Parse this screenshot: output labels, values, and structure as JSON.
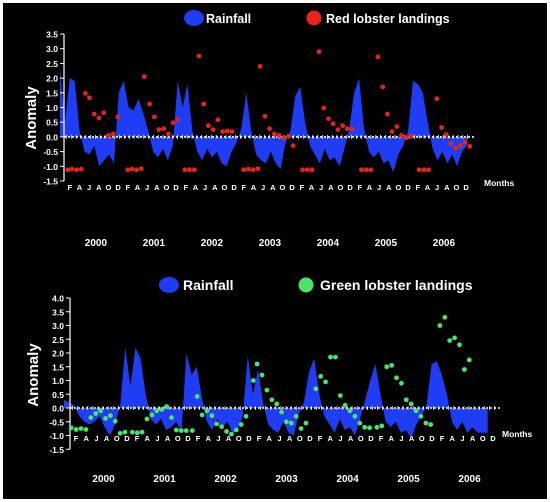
{
  "colors": {
    "background": "#000000",
    "frame": "#ffffff",
    "rainfall": "#1f3df5",
    "red_lobster": "#e8231b",
    "green_lobster": "#4be36a",
    "text": "#ffffff"
  },
  "chart_data": [
    {
      "type": "area",
      "ylabel": "Anomaly",
      "xlabel": "Months",
      "ylim": [
        -1.5,
        3.5
      ],
      "yticks": [
        "3.5",
        "3.0",
        "2.5",
        "2.0",
        "1.5",
        "1.0",
        "0.5",
        "0.0",
        "-0.5",
        "-1.0",
        "-1.5"
      ],
      "years": [
        "2000",
        "2001",
        "2002",
        "2003",
        "2004",
        "2005",
        "2006"
      ],
      "month_tick_labels": [
        "F",
        "A",
        "J",
        "A",
        "O",
        "D"
      ],
      "legend": [
        {
          "name": "Rainfall",
          "marker": "ellipse"
        },
        {
          "name": "Red lobster landings",
          "marker": "dot"
        }
      ],
      "series": [
        {
          "name": "Rainfall",
          "kind": "area",
          "x_start": 2000.0,
          "x_step": 0.0833,
          "values": [
            2.3,
            0.5,
            2.0,
            1.9,
            0.2,
            -0.5,
            -0.6,
            -0.3,
            -1.0,
            -0.8,
            -0.6,
            -0.9,
            1.5,
            1.9,
            1.0,
            0.9,
            1.3,
            0.8,
            0.2,
            -0.5,
            -0.7,
            -0.4,
            -0.8,
            -0.3,
            1.9,
            1.0,
            1.8,
            0.2,
            -0.5,
            -0.8,
            -0.4,
            -0.7,
            -0.5,
            -0.9,
            -1.0,
            -0.5,
            -0.2,
            0.3,
            1.5,
            0.2,
            -0.6,
            -0.8,
            -0.9,
            -0.5,
            -0.9,
            -1.1,
            -0.2,
            0.2,
            1.4,
            1.7,
            0.5,
            -0.3,
            -0.6,
            -0.9,
            -0.4,
            -0.8,
            -0.7,
            -1.0,
            -0.4,
            0.3,
            1.5,
            2.0,
            0.3,
            -0.5,
            -0.7,
            -0.5,
            -0.9,
            -0.8,
            -1.2,
            -0.6,
            -0.3,
            0.2,
            1.9,
            1.8,
            1.5,
            0.5,
            -0.4,
            -0.8,
            -0.5,
            -0.9,
            -0.6,
            -1.0,
            -0.5,
            -0.3
          ]
        },
        {
          "name": "Red lobster landings",
          "kind": "scatter",
          "points": [
            [
              2000.03,
              -1.12
            ],
            [
              2000.1,
              -1.1
            ],
            [
              2000.18,
              -1.12
            ],
            [
              2000.26,
              -1.1
            ],
            [
              2000.33,
              1.48
            ],
            [
              2000.4,
              1.33
            ],
            [
              2000.48,
              0.78
            ],
            [
              2000.56,
              0.64
            ],
            [
              2000.64,
              0.82
            ],
            [
              2000.72,
              0.05
            ],
            [
              2000.8,
              0.1
            ],
            [
              2000.88,
              0.68
            ],
            [
              2001.05,
              -1.12
            ],
            [
              2001.12,
              -1.1
            ],
            [
              2001.2,
              -1.12
            ],
            [
              2001.28,
              -1.08
            ],
            [
              2001.33,
              2.05
            ],
            [
              2001.42,
              1.12
            ],
            [
              2001.5,
              0.68
            ],
            [
              2001.58,
              0.25
            ],
            [
              2001.66,
              0.28
            ],
            [
              2001.74,
              0.1
            ],
            [
              2001.82,
              0.48
            ],
            [
              2001.9,
              0.58
            ],
            [
              2002.02,
              -1.12
            ],
            [
              2002.1,
              -1.12
            ],
            [
              2002.18,
              -1.12
            ],
            [
              2002.26,
              2.75
            ],
            [
              2002.34,
              1.12
            ],
            [
              2002.42,
              0.38
            ],
            [
              2002.5,
              0.25
            ],
            [
              2002.58,
              0.58
            ],
            [
              2002.66,
              0.18
            ],
            [
              2002.74,
              0.2
            ],
            [
              2002.82,
              0.18
            ],
            [
              2003.02,
              -1.12
            ],
            [
              2003.1,
              -1.1
            ],
            [
              2003.18,
              -1.12
            ],
            [
              2003.26,
              -1.08
            ],
            [
              2003.3,
              2.4
            ],
            [
              2003.38,
              0.7
            ],
            [
              2003.46,
              0.28
            ],
            [
              2003.54,
              0.1
            ],
            [
              2003.62,
              0.05
            ],
            [
              2003.7,
              -0.03
            ],
            [
              2003.78,
              0.02
            ],
            [
              2003.86,
              -0.3
            ],
            [
              2004.02,
              -1.12
            ],
            [
              2004.1,
              -1.12
            ],
            [
              2004.18,
              -1.12
            ],
            [
              2004.3,
              2.9
            ],
            [
              2004.38,
              0.98
            ],
            [
              2004.46,
              0.62
            ],
            [
              2004.54,
              0.45
            ],
            [
              2004.62,
              0.25
            ],
            [
              2004.7,
              0.38
            ],
            [
              2004.78,
              0.28
            ],
            [
              2004.86,
              0.28
            ],
            [
              2005.02,
              -1.12
            ],
            [
              2005.1,
              -1.12
            ],
            [
              2005.18,
              -1.12
            ],
            [
              2005.3,
              2.72
            ],
            [
              2005.38,
              1.7
            ],
            [
              2005.46,
              0.78
            ],
            [
              2005.54,
              0.18
            ],
            [
              2005.62,
              0.35
            ],
            [
              2005.7,
              0.05
            ],
            [
              2005.78,
              -0.03
            ],
            [
              2005.86,
              0.02
            ],
            [
              2006.0,
              -1.12
            ],
            [
              2006.08,
              -1.12
            ],
            [
              2006.16,
              -1.12
            ],
            [
              2006.3,
              1.3
            ],
            [
              2006.38,
              0.32
            ],
            [
              2006.46,
              0.08
            ],
            [
              2006.54,
              -0.22
            ],
            [
              2006.62,
              -0.38
            ],
            [
              2006.7,
              -0.3
            ],
            [
              2006.78,
              -0.18
            ],
            [
              2006.86,
              -0.32
            ]
          ]
        }
      ]
    },
    {
      "type": "area",
      "ylabel": "Anomaly",
      "xlabel": "Months",
      "ylim": [
        -1.5,
        4.0
      ],
      "yticks": [
        "4.0",
        "3.5",
        "3.0",
        "2.5",
        "2.0",
        "1.5",
        "1.0",
        "0.5",
        "0.0",
        "-0.5",
        "-1.0",
        "-1.5"
      ],
      "years": [
        "2000",
        "2001",
        "2002",
        "2003",
        "2004",
        "2005",
        "2006"
      ],
      "month_tick_labels": [
        "F",
        "A",
        "J",
        "A",
        "O",
        "D"
      ],
      "legend": [
        {
          "name": "Rainfall",
          "marker": "ellipse"
        },
        {
          "name": "Green lobster landings",
          "marker": "dot"
        }
      ],
      "series": [
        {
          "name": "Rainfall",
          "kind": "area",
          "x_start": 2000.0,
          "x_step": 0.0833,
          "values": [
            0.3,
            0.2,
            0.1,
            -0.3,
            -0.5,
            -0.6,
            -0.5,
            -0.3,
            -0.7,
            -1.0,
            -0.6,
            0.1,
            2.2,
            0.8,
            2.2,
            1.8,
            0.5,
            -0.4,
            -0.6,
            -0.4,
            -0.8,
            -0.7,
            -0.5,
            -0.9,
            2.0,
            1.2,
            1.5,
            0.4,
            -0.5,
            -0.8,
            -0.4,
            -0.7,
            -0.5,
            -0.9,
            -0.8,
            -0.3,
            1.9,
            0.5,
            1.4,
            0.2,
            -0.6,
            -0.8,
            -0.9,
            -0.5,
            -0.9,
            -1.0,
            -0.2,
            0.2,
            1.3,
            1.8,
            0.5,
            -0.3,
            -0.6,
            -0.9,
            -0.4,
            -0.8,
            -0.7,
            -1.0,
            -0.4,
            0.3,
            1.0,
            1.6,
            0.5,
            -0.5,
            -0.7,
            -0.5,
            -0.9,
            -0.8,
            -1.1,
            -0.6,
            -0.3,
            0.1,
            1.6,
            1.7,
            1.2,
            0.5,
            -0.5,
            -0.8,
            -0.5,
            -0.9,
            -0.7,
            -0.9,
            -0.9,
            -0.9
          ]
        },
        {
          "name": "Green lobster landings",
          "kind": "scatter",
          "points": [
            [
              2000.02,
              -0.72
            ],
            [
              2000.1,
              -0.78
            ],
            [
              2000.18,
              -0.75
            ],
            [
              2000.26,
              -0.78
            ],
            [
              2000.34,
              -0.35
            ],
            [
              2000.42,
              -0.2
            ],
            [
              2000.5,
              -0.1
            ],
            [
              2000.58,
              -0.38
            ],
            [
              2000.66,
              -0.28
            ],
            [
              2000.74,
              -0.48
            ],
            [
              2000.82,
              -0.92
            ],
            [
              2000.9,
              -0.88
            ],
            [
              2001.02,
              -0.88
            ],
            [
              2001.1,
              -0.9
            ],
            [
              2001.18,
              -0.88
            ],
            [
              2001.26,
              -0.4
            ],
            [
              2001.34,
              -0.25
            ],
            [
              2001.42,
              -0.1
            ],
            [
              2001.5,
              -0.05
            ],
            [
              2001.58,
              0.05
            ],
            [
              2001.66,
              -0.35
            ],
            [
              2001.74,
              -0.8
            ],
            [
              2001.82,
              -0.82
            ],
            [
              2001.9,
              -0.82
            ],
            [
              2002.0,
              -0.82
            ],
            [
              2002.08,
              0.42
            ],
            [
              2002.16,
              -0.25
            ],
            [
              2002.24,
              -0.1
            ],
            [
              2002.32,
              -0.28
            ],
            [
              2002.4,
              -0.58
            ],
            [
              2002.48,
              -0.68
            ],
            [
              2002.56,
              -0.85
            ],
            [
              2002.64,
              -0.95
            ],
            [
              2002.72,
              -0.8
            ],
            [
              2002.8,
              -0.6
            ],
            [
              2002.88,
              -0.3
            ],
            [
              2003.0,
              1.0
            ],
            [
              2003.06,
              1.6
            ],
            [
              2003.14,
              1.2
            ],
            [
              2003.22,
              0.65
            ],
            [
              2003.3,
              0.3
            ],
            [
              2003.38,
              0.15
            ],
            [
              2003.46,
              -0.15
            ],
            [
              2003.54,
              -0.5
            ],
            [
              2003.62,
              -0.55
            ],
            [
              2003.7,
              -0.3
            ],
            [
              2003.78,
              -0.75
            ],
            [
              2003.86,
              -0.55
            ],
            [
              2004.02,
              0.7
            ],
            [
              2004.1,
              1.15
            ],
            [
              2004.18,
              0.95
            ],
            [
              2004.26,
              1.85
            ],
            [
              2004.34,
              1.85
            ],
            [
              2004.42,
              0.45
            ],
            [
              2004.5,
              0.1
            ],
            [
              2004.58,
              -0.1
            ],
            [
              2004.66,
              -0.3
            ],
            [
              2004.74,
              -0.55
            ],
            [
              2004.82,
              -0.7
            ],
            [
              2004.9,
              -0.72
            ],
            [
              2005.02,
              -0.7
            ],
            [
              2005.1,
              -0.65
            ],
            [
              2005.18,
              1.5
            ],
            [
              2005.26,
              1.55
            ],
            [
              2005.34,
              1.1
            ],
            [
              2005.42,
              0.9
            ],
            [
              2005.5,
              0.3
            ],
            [
              2005.58,
              0.15
            ],
            [
              2005.66,
              -0.1
            ],
            [
              2005.74,
              -0.3
            ],
            [
              2005.82,
              -0.55
            ],
            [
              2005.9,
              -0.6
            ],
            [
              2006.05,
              3.0
            ],
            [
              2006.13,
              3.3
            ],
            [
              2006.21,
              2.45
            ],
            [
              2006.29,
              2.55
            ],
            [
              2006.37,
              2.3
            ],
            [
              2006.45,
              1.4
            ],
            [
              2006.53,
              1.75
            ]
          ]
        }
      ]
    }
  ]
}
